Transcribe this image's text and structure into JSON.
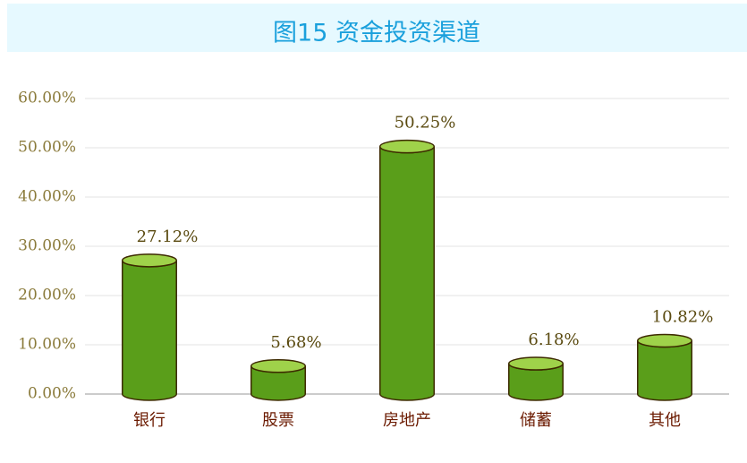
{
  "chart_data": {
    "type": "bar",
    "title": "图15 资金投资渠道",
    "categories": [
      "银行",
      "股票",
      "房地产",
      "储蓄",
      "其他"
    ],
    "values": [
      27.12,
      5.68,
      50.25,
      6.18,
      10.82
    ],
    "value_labels": [
      "27.12%",
      "5.68%",
      "50.25%",
      "6.18%",
      "10.82%"
    ],
    "color": "#5a9e1a",
    "ylim": [
      0,
      60
    ],
    "yticks": [
      {
        "value": 0,
        "label": "0.00%"
      },
      {
        "value": 10,
        "label": "10.00%"
      },
      {
        "value": 20,
        "label": "20.00%"
      },
      {
        "value": 30,
        "label": "30.00%"
      },
      {
        "value": 40,
        "label": "40.00%"
      },
      {
        "value": 50,
        "label": "50.00%"
      },
      {
        "value": 60,
        "label": "60.00%"
      }
    ],
    "grid": true
  }
}
